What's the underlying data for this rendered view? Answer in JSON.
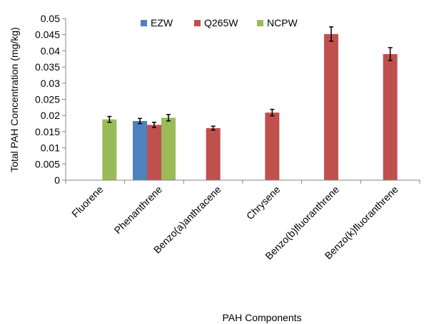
{
  "chart_data": {
    "type": "bar",
    "title": "",
    "xlabel": "PAH Components",
    "ylabel": "Total PAH Concentration (mg/kg)",
    "ylim": [
      0,
      0.05
    ],
    "yticks": [
      "0",
      "0.005",
      "0.01",
      "0.015",
      "0.02",
      "0.025",
      "0.03",
      "0.035",
      "0.04",
      "0.045",
      "0.05"
    ],
    "grid": false,
    "legend_position": "top",
    "categories": [
      "Fluorene",
      "Phenanthrene",
      "Benzo(a)anthracene",
      "Chrysene",
      "Benzo(b)fluoranthrene",
      "Benzo(k)fluoranthrene"
    ],
    "series": [
      {
        "name": "EZW",
        "color": "#4f81bd",
        "values": [
          null,
          0.0183,
          null,
          null,
          null,
          null
        ],
        "errors": [
          null,
          0.0008,
          null,
          null,
          null,
          null
        ]
      },
      {
        "name": "Q265W",
        "color": "#c0504d",
        "values": [
          null,
          0.0171,
          0.0161,
          0.0209,
          0.0452,
          0.039
        ],
        "errors": [
          null,
          0.0008,
          0.0006,
          0.001,
          0.0022,
          0.002
        ]
      },
      {
        "name": "NCPW",
        "color": "#9bbb59",
        "values": [
          0.0188,
          0.0193,
          null,
          null,
          null,
          null
        ],
        "errors": [
          0.0009,
          0.001,
          null,
          null,
          null,
          null
        ]
      }
    ]
  }
}
